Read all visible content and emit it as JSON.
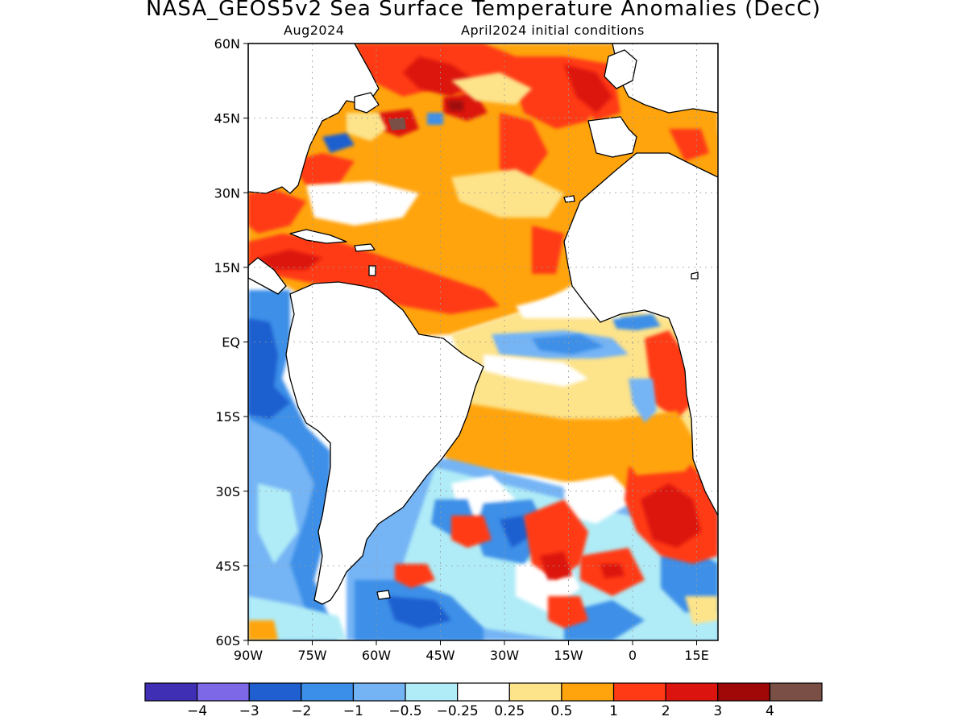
{
  "title": "NASA_GEOS5v2 Sea Surface Temperature Anomalies (DecC)",
  "subtitle_left": "Aug2024",
  "subtitle_right": "April2024 initial conditions",
  "colors": {
    "land": "#ffffff",
    "coast": "#000000",
    "grid": "#999999",
    "levels": [
      "#3f2fb5",
      "#7d68e8",
      "#1f5fcf",
      "#3c8fe8",
      "#74b4f5",
      "#b0ecf7",
      "#ffffff",
      "#fde38a",
      "#ffa40c",
      "#ff3a14",
      "#dc1410",
      "#a00808",
      "#7a5046"
    ]
  },
  "map": {
    "lon_range": [
      -90,
      20
    ],
    "lat_range": [
      -60,
      60
    ],
    "lat_ticks": [
      "60N",
      "45N",
      "30N",
      "15N",
      "EQ",
      "15S",
      "30S",
      "45S",
      "60S"
    ],
    "lon_ticks": [
      "90W",
      "75W",
      "60W",
      "45W",
      "30W",
      "15W",
      "0",
      "15E"
    ]
  },
  "colorbar": {
    "labels": [
      "−4",
      "−3",
      "−2",
      "−1",
      "−0.5",
      "−0.25",
      "0.25",
      "0.5",
      "1",
      "2",
      "3",
      "4"
    ]
  }
}
